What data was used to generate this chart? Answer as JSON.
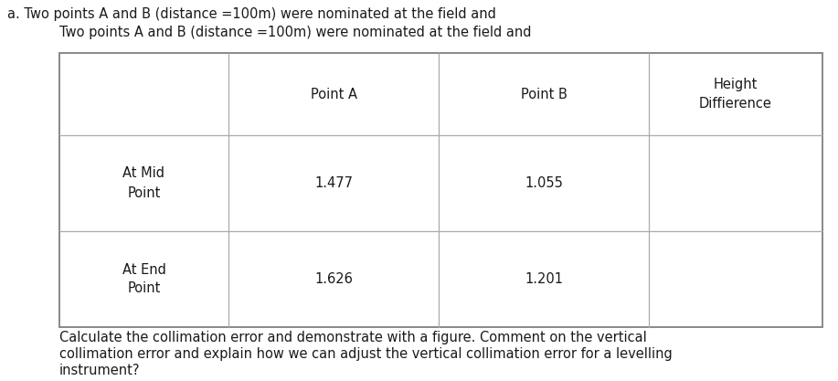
{
  "title_line1": "a. Two points A and B (distance =100m) were nominated at the field and",
  "title_line2": "Two points A and B (distance =100m) were nominated at the field and",
  "col_headers": [
    "",
    "Point A",
    "Point B",
    "Height\nDiffierence"
  ],
  "row_headers": [
    "At Mid\nPoint",
    "At End\nPoint"
  ],
  "data": [
    [
      "1.477",
      "1.055",
      ""
    ],
    [
      "1.626",
      "1.201",
      ""
    ]
  ],
  "footer_line1": "Calculate the collimation error and demonstrate with a figure. Comment on the vertical",
  "footer_line2": "collimation error and explain how we can adjust the vertical collimation error for a levelling",
  "footer_line3": "instrument?",
  "bg_color": "#ffffff",
  "text_color": "#1a1a1a",
  "table_line_color": "#aaaaaa",
  "table_outer_color": "#888888",
  "fontsize": 10.5,
  "table_fontsize": 10.5
}
